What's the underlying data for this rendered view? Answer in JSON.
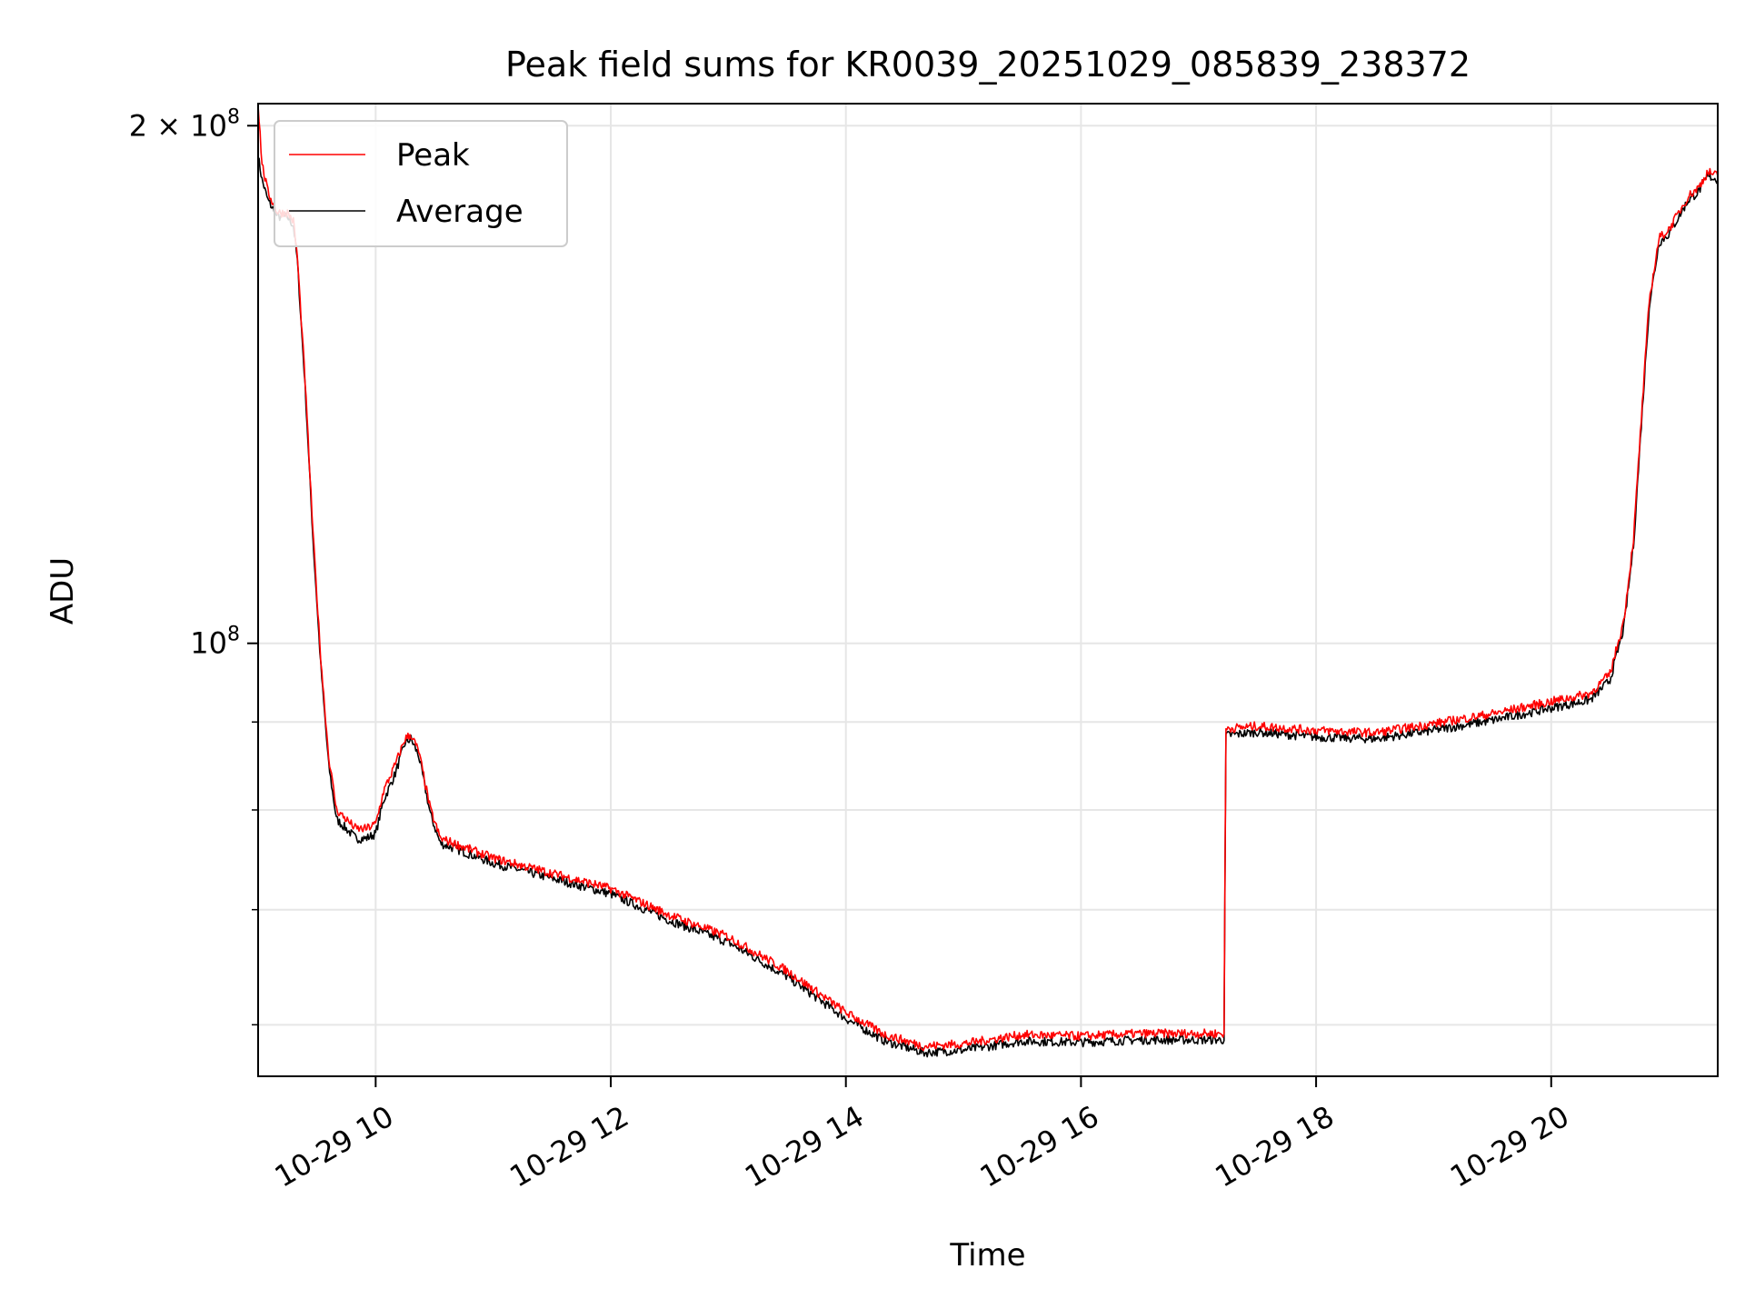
{
  "chart_data": {
    "type": "line",
    "title": "Peak field sums for KR0039_20251029_085839_238372",
    "xlabel": "Time",
    "ylabel": "ADU",
    "y_scale": "log",
    "ylim": [
      56000000,
      206000000
    ],
    "xlim": [
      "2025-10-29 09:00",
      "2025-10-29 21:25"
    ],
    "x_ticks": [
      {
        "value": "2025-10-29 10:00",
        "label": "10-29 10"
      },
      {
        "value": "2025-10-29 12:00",
        "label": "10-29 12"
      },
      {
        "value": "2025-10-29 14:00",
        "label": "10-29 14"
      },
      {
        "value": "2025-10-29 16:00",
        "label": "10-29 16"
      },
      {
        "value": "2025-10-29 18:00",
        "label": "10-29 18"
      },
      {
        "value": "2025-10-29 20:00",
        "label": "10-29 20"
      }
    ],
    "y_ticks_major": [
      {
        "value": 100000000,
        "base": "10",
        "exp": "8",
        "coef": ""
      },
      {
        "value": 200000000,
        "base": "10",
        "exp": "8",
        "coef": "2 × "
      }
    ],
    "y_ticks_minor": [
      60000000,
      70000000,
      80000000,
      90000000
    ],
    "grid": true,
    "legend": "top-left",
    "series": [
      {
        "name": "Peak",
        "color": "#ff0000",
        "x": [
          "2025-10-29 09:00",
          "2025-10-29 09:02",
          "2025-10-29 09:05",
          "2025-10-29 09:10",
          "2025-10-29 09:15",
          "2025-10-29 09:18",
          "2025-10-29 09:20",
          "2025-10-29 09:24",
          "2025-10-29 09:28",
          "2025-10-29 09:32",
          "2025-10-29 09:36",
          "2025-10-29 09:40",
          "2025-10-29 09:45",
          "2025-10-29 09:50",
          "2025-10-29 09:55",
          "2025-10-29 10:00",
          "2025-10-29 10:04",
          "2025-10-29 10:10",
          "2025-10-29 10:15",
          "2025-10-29 10:18",
          "2025-10-29 10:22",
          "2025-10-29 10:28",
          "2025-10-29 10:33",
          "2025-10-29 10:40",
          "2025-10-29 11:00",
          "2025-10-29 11:30",
          "2025-10-29 12:00",
          "2025-10-29 12:30",
          "2025-10-29 13:00",
          "2025-10-29 13:30",
          "2025-10-29 14:00",
          "2025-10-29 14:20",
          "2025-10-29 14:40",
          "2025-10-29 15:00",
          "2025-10-29 15:30",
          "2025-10-29 16:00",
          "2025-10-29 16:30",
          "2025-10-29 17:00",
          "2025-10-29 17:13",
          "2025-10-29 17:14",
          "2025-10-29 17:30",
          "2025-10-29 18:00",
          "2025-10-29 18:30",
          "2025-10-29 19:00",
          "2025-10-29 19:30",
          "2025-10-29 20:00",
          "2025-10-29 20:20",
          "2025-10-29 20:30",
          "2025-10-29 20:37",
          "2025-10-29 20:42",
          "2025-10-29 20:46",
          "2025-10-29 20:50",
          "2025-10-29 20:55",
          "2025-10-29 21:00",
          "2025-10-29 21:10",
          "2025-10-29 21:15",
          "2025-10-29 21:20",
          "2025-10-29 21:25"
        ],
        "y": [
          206000000,
          190000000,
          183000000,
          178000000,
          178000000,
          176000000,
          168000000,
          142000000,
          116000000,
          98000000,
          86000000,
          80000000,
          79000000,
          78000000,
          78000000,
          78500000,
          82000000,
          85000000,
          88000000,
          88500000,
          86500000,
          80000000,
          77000000,
          76500000,
          75000000,
          73500000,
          72000000,
          69500000,
          67500000,
          64500000,
          61000000,
          59200000,
          58300000,
          58500000,
          59200000,
          59100000,
          59300000,
          59300000,
          59300000,
          89200000,
          89500000,
          89000000,
          88700000,
          89800000,
          91000000,
          92500000,
          93500000,
          96000000,
          103000000,
          115000000,
          135000000,
          158000000,
          172000000,
          174000000,
          182000000,
          184000000,
          188000000,
          187000000
        ]
      },
      {
        "name": "Average",
        "color": "#000000",
        "x": [
          "2025-10-29 09:00",
          "2025-10-29 09:02",
          "2025-10-29 09:05",
          "2025-10-29 09:10",
          "2025-10-29 09:15",
          "2025-10-29 09:18",
          "2025-10-29 09:20",
          "2025-10-29 09:24",
          "2025-10-29 09:28",
          "2025-10-29 09:32",
          "2025-10-29 09:36",
          "2025-10-29 09:40",
          "2025-10-29 09:45",
          "2025-10-29 09:50",
          "2025-10-29 09:55",
          "2025-10-29 10:00",
          "2025-10-29 10:04",
          "2025-10-29 10:10",
          "2025-10-29 10:15",
          "2025-10-29 10:18",
          "2025-10-29 10:22",
          "2025-10-29 10:28",
          "2025-10-29 10:33",
          "2025-10-29 10:40",
          "2025-10-29 11:00",
          "2025-10-29 11:30",
          "2025-10-29 12:00",
          "2025-10-29 12:30",
          "2025-10-29 13:00",
          "2025-10-29 13:30",
          "2025-10-29 14:00",
          "2025-10-29 14:20",
          "2025-10-29 14:40",
          "2025-10-29 15:00",
          "2025-10-29 15:30",
          "2025-10-29 16:00",
          "2025-10-29 16:30",
          "2025-10-29 17:00",
          "2025-10-29 17:13",
          "2025-10-29 17:14",
          "2025-10-29 17:30",
          "2025-10-29 18:00",
          "2025-10-29 18:30",
          "2025-10-29 19:00",
          "2025-10-29 19:30",
          "2025-10-29 20:00",
          "2025-10-29 20:20",
          "2025-10-29 20:30",
          "2025-10-29 20:37",
          "2025-10-29 20:42",
          "2025-10-29 20:46",
          "2025-10-29 20:50",
          "2025-10-29 20:55",
          "2025-10-29 21:00",
          "2025-10-29 21:10",
          "2025-10-29 21:15",
          "2025-10-29 21:20",
          "2025-10-29 21:25"
        ],
        "y": [
          192000000,
          186000000,
          181000000,
          177000000,
          177000000,
          175000000,
          167000000,
          141000000,
          115000000,
          97000000,
          85000000,
          79000000,
          78000000,
          77000000,
          77000000,
          77500000,
          81000000,
          84000000,
          87500000,
          88000000,
          86000000,
          79500000,
          76500000,
          76000000,
          74500000,
          73000000,
          71500000,
          69000000,
          67000000,
          64000000,
          60500000,
          58700000,
          57800000,
          58000000,
          58700000,
          58600000,
          58800000,
          58800000,
          58800000,
          88400000,
          88800000,
          88200000,
          88000000,
          89000000,
          90200000,
          91700000,
          92700000,
          95200000,
          102000000,
          114000000,
          134000000,
          157000000,
          171000000,
          173000000,
          181000000,
          183000000,
          187000000,
          186000000
        ]
      }
    ]
  }
}
